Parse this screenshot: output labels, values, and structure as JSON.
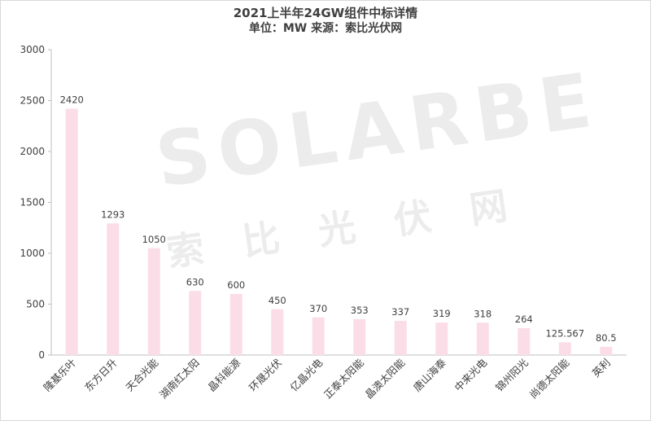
{
  "title": "2021上半年24GW组件中标详情",
  "subtitle": "单位：MW 来源：索比光伏网",
  "watermark": {
    "main": "SOLARBE",
    "sub": "索比光伏网"
  },
  "colors": {
    "bar": "#fbdde8",
    "axis": "#bfbfbf",
    "text": "#404040"
  },
  "chart_data": {
    "type": "bar",
    "title": "2021上半年24GW组件中标详情",
    "subtitle": "单位：MW 来源：索比光伏网",
    "xlabel": "",
    "ylabel": "",
    "ylim": [
      0,
      3000
    ],
    "yticks": [
      0,
      500,
      1000,
      1500,
      2000,
      2500,
      3000
    ],
    "grid": false,
    "categories": [
      "隆基乐叶",
      "东方日升",
      "天合光能",
      "湖南红太阳",
      "晶科能源",
      "环晟光伏",
      "亿晶光电",
      "正泰太阳能",
      "晶澳太阳能",
      "唐山海泰",
      "中来光电",
      "锦州阳光",
      "尚德太阳能",
      "英利"
    ],
    "values": [
      2420,
      1293,
      1050,
      630,
      600,
      450,
      370,
      353,
      337,
      319,
      318,
      264,
      125.567,
      80.5
    ],
    "value_labels": [
      "2420",
      "1293",
      "1050",
      "630",
      "600",
      "450",
      "370",
      "353",
      "337",
      "319",
      "318",
      "264",
      "125.567",
      "80.5"
    ]
  }
}
